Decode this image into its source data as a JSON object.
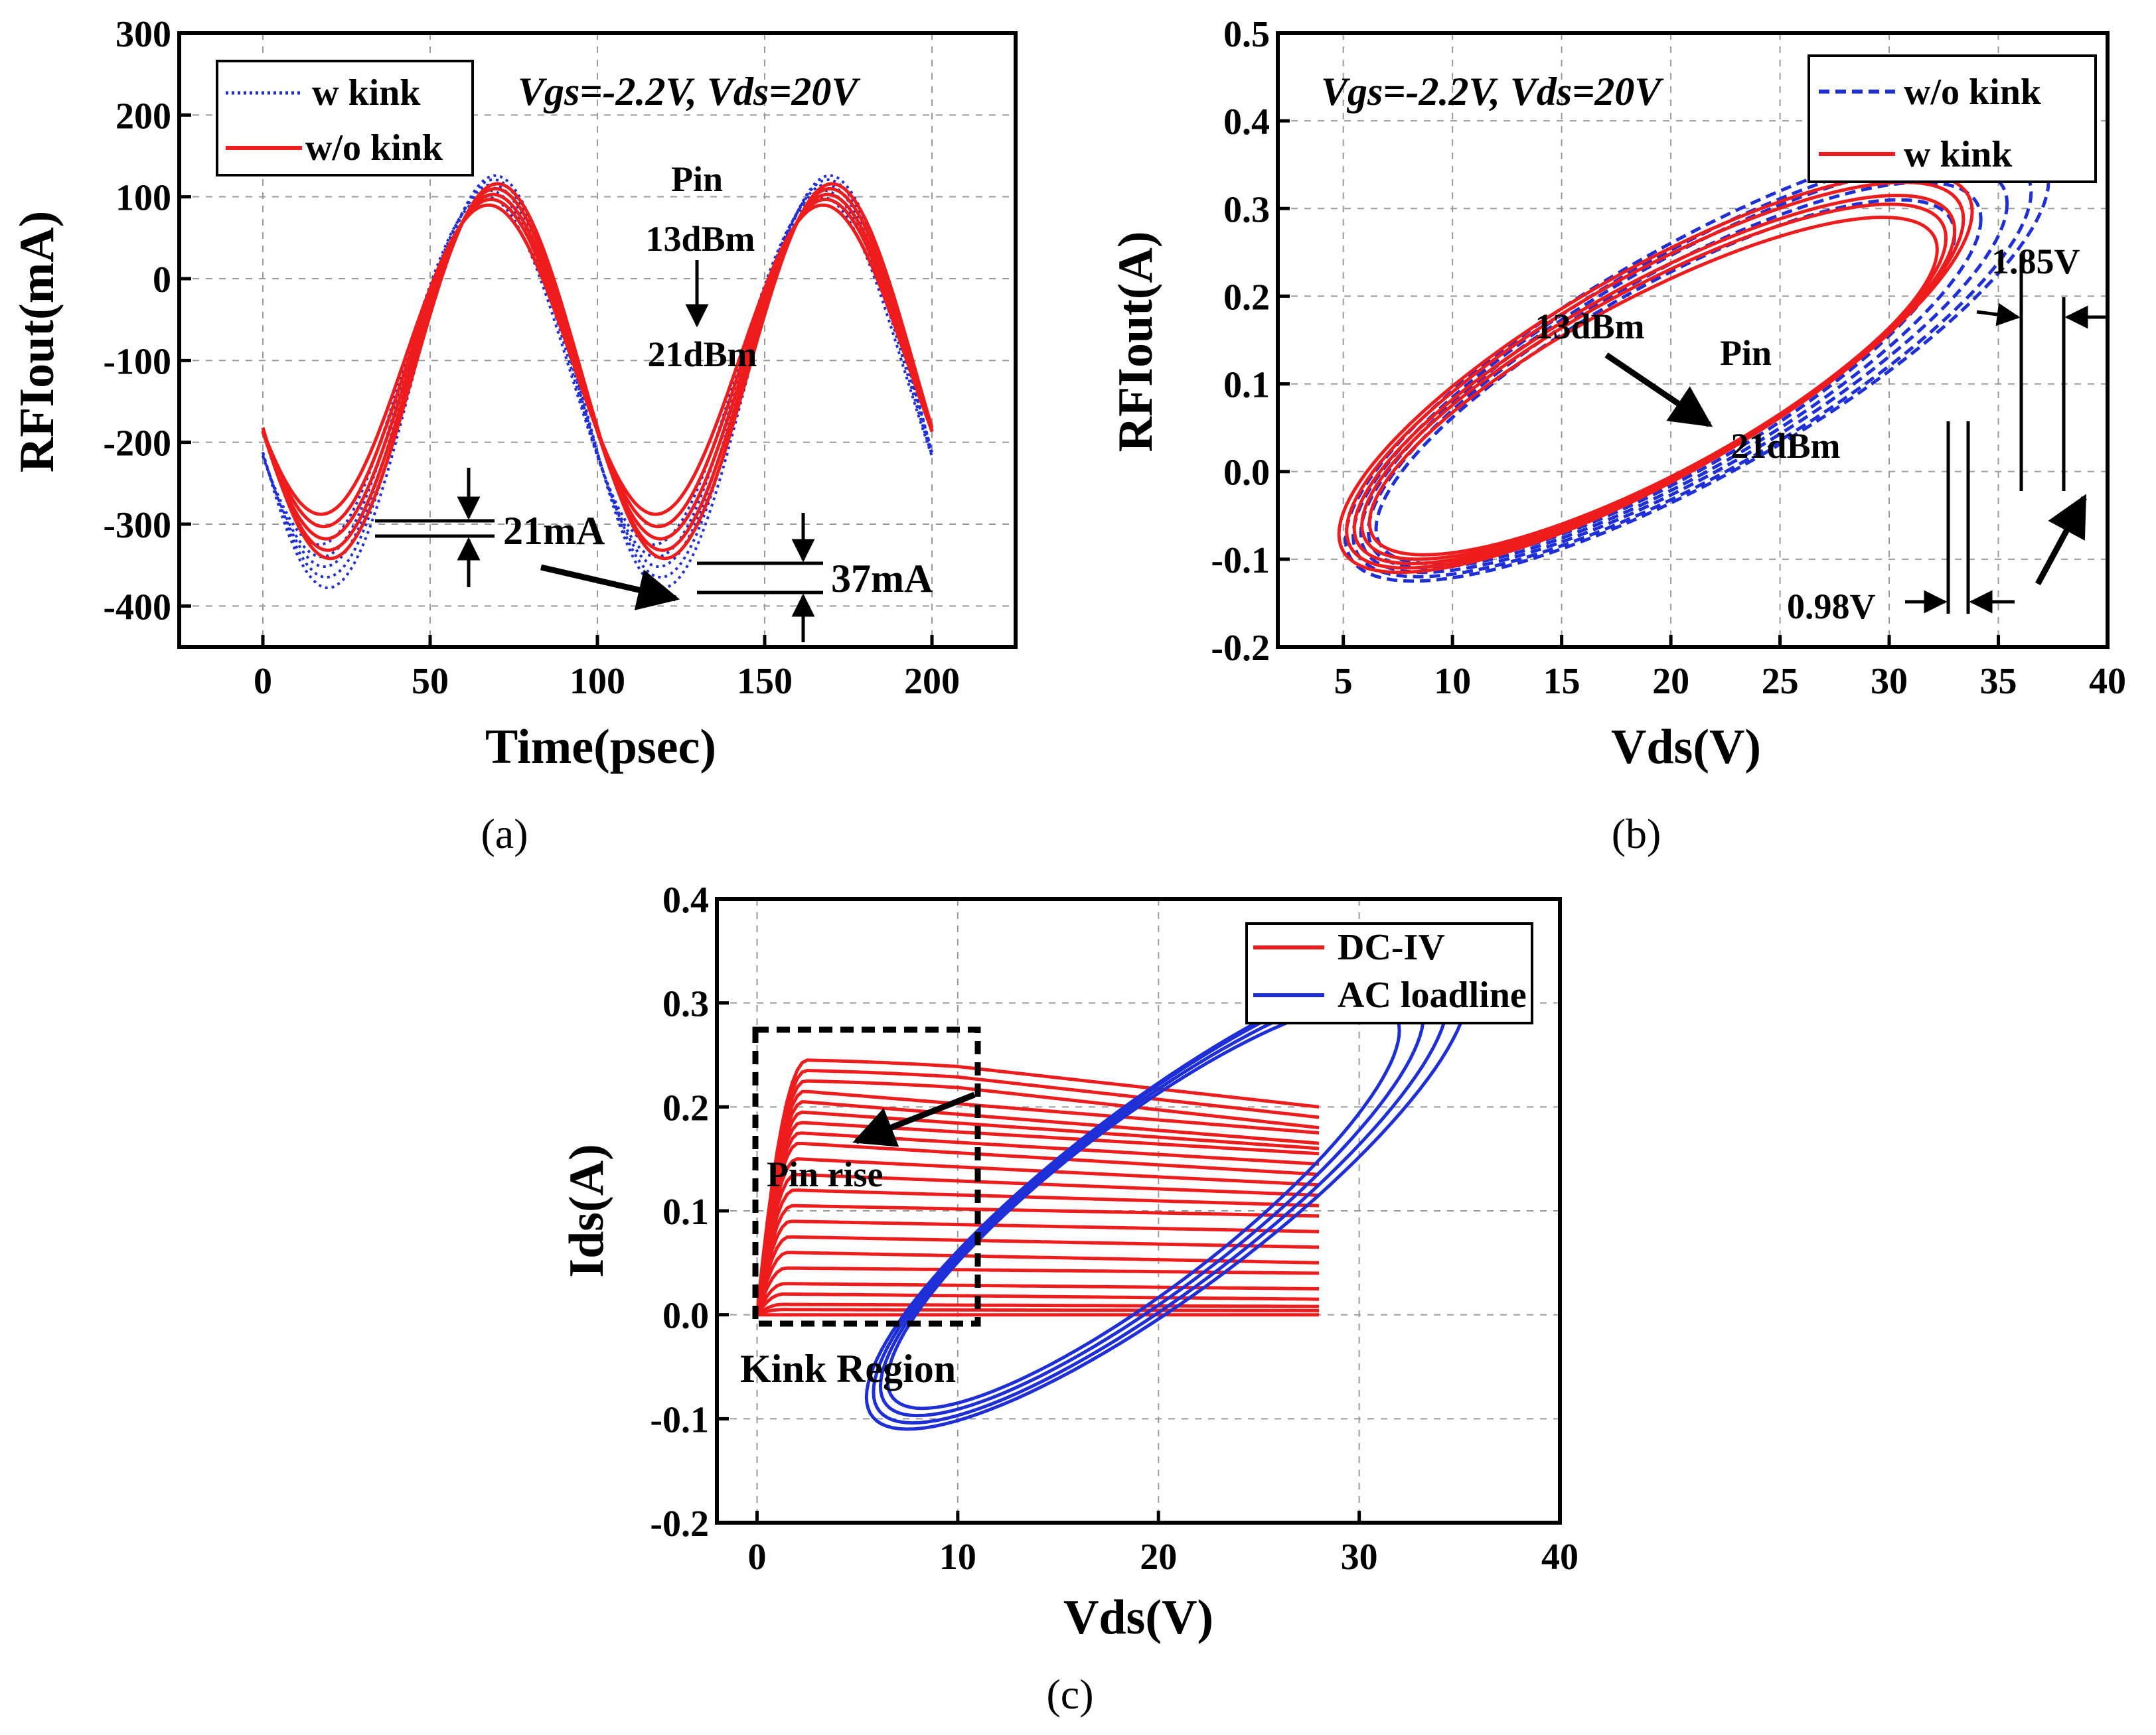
{
  "chart_data": [
    {
      "type": "line",
      "panel_label": "(a)",
      "xlabel": "Time(psec)",
      "ylabel": "RFIout(mA)",
      "xlim": [
        -25,
        225
      ],
      "ylim": [
        -450,
        300
      ],
      "xticks": [
        "0",
        "50",
        "100",
        "150",
        "200"
      ],
      "yticks": [
        "300",
        "200",
        "100",
        "0",
        "-100",
        "-200",
        "-300",
        "-400"
      ],
      "grid": true,
      "legend_position": "top-left",
      "legend": [
        {
          "name": "w kink",
          "color": "#1f2fd8",
          "style": "dotted"
        },
        {
          "name": "w/o kink",
          "color": "#ee1c1c",
          "style": "solid"
        }
      ],
      "condition": "Vgs=-2.2V, Vds=20V",
      "series": [
        {
          "name": "w kink",
          "color": "#1f2fd8",
          "style": "dotted",
          "period_ps": 100,
          "time_range": [
            0,
            200
          ],
          "peak_max_mA": [
            100,
            108,
            115,
            121,
            126
          ],
          "trough_min_mA": [
            -325,
            -340,
            -352,
            -365,
            -378
          ]
        },
        {
          "name": "w/o kink",
          "color": "#ee1c1c",
          "style": "solid",
          "period_ps": 100,
          "time_range": [
            0,
            200
          ],
          "peak_max_mA": [
            90,
            97,
            103,
            110,
            116
          ],
          "trough_min_mA": [
            -288,
            -303,
            -318,
            -332,
            -342
          ]
        }
      ],
      "annotations": {
        "pin": "Pin",
        "pin_low": "13dBm",
        "pin_high": "21dBm",
        "delta1": "21mA",
        "delta2": "37mA"
      }
    },
    {
      "type": "line",
      "panel_label": "(b)",
      "xlabel": "Vds(V)",
      "ylabel": "RFIout(A)",
      "xlim": [
        2,
        40
      ],
      "ylim": [
        -0.2,
        0.5
      ],
      "xticks": [
        "5",
        "10",
        "15",
        "20",
        "25",
        "30",
        "35",
        "40"
      ],
      "yticks": [
        "0.5",
        "0.4",
        "0.3",
        "0.2",
        "0.1",
        "0.0",
        "-0.1",
        "-0.2"
      ],
      "grid": true,
      "legend_position": "top-right",
      "legend": [
        {
          "name": "w/o kink",
          "color": "#1f2fd8",
          "style": "dashed"
        },
        {
          "name": "w kink",
          "color": "#ee1c1c",
          "style": "solid"
        }
      ],
      "condition": "Vgs=-2.2V, Vds=20V",
      "series": [
        {
          "name": "w/o kink",
          "color": "#1f2fd8",
          "style": "dashed",
          "loops_vds_max_V": [
            33.0,
            34.2,
            35.4,
            36.5,
            37.3
          ],
          "loops_ids_max_A": [
            0.31,
            0.33,
            0.35,
            0.365,
            0.38
          ],
          "loops_ids_min_A": [
            -0.105,
            -0.11,
            -0.115,
            -0.12,
            -0.125
          ]
        },
        {
          "name": "w kink",
          "color": "#ee1c1c",
          "style": "solid",
          "loops_vds_max_V": [
            32.2,
            32.6,
            33.0,
            33.4,
            33.8
          ],
          "loops_ids_max_A": [
            0.29,
            0.305,
            0.315,
            0.33,
            0.34
          ],
          "loops_ids_min_A": [
            -0.095,
            -0.1,
            -0.105,
            -0.11,
            -0.115
          ]
        }
      ],
      "annotations": {
        "pin": "Pin",
        "pin_low": "13dBm",
        "pin_high": "21dBm",
        "delta_blue": "1.85V",
        "delta_red": "0.98V"
      }
    },
    {
      "type": "line",
      "panel_label": "(c)",
      "xlabel": "Vds(V)",
      "ylabel": "Ids(A)",
      "xlim": [
        -2,
        40
      ],
      "ylim": [
        -0.2,
        0.4
      ],
      "xticks": [
        "0",
        "10",
        "20",
        "30",
        "40"
      ],
      "yticks": [
        "0.4",
        "0.3",
        "0.2",
        "0.1",
        "0.0",
        "-0.1",
        "-0.2"
      ],
      "grid": true,
      "legend_position": "top-right",
      "legend": [
        {
          "name": "DC-IV",
          "color": "#ee1c1c",
          "style": "solid"
        },
        {
          "name": "AC loadline",
          "color": "#1f2fd8",
          "style": "solid"
        }
      ],
      "series": [
        {
          "name": "DC-IV",
          "color": "#ee1c1c",
          "style": "solid",
          "vds_range": [
            0,
            28
          ],
          "knee_ids_A": [
            0.0,
            0.005,
            0.01,
            0.02,
            0.03,
            0.045,
            0.06,
            0.075,
            0.09,
            0.105,
            0.12,
            0.135,
            0.15,
            0.165,
            0.175,
            0.185,
            0.195,
            0.205,
            0.215,
            0.225,
            0.235,
            0.245
          ],
          "end_ids_A_at_28V": [
            0.0,
            0.004,
            0.008,
            0.015,
            0.025,
            0.04,
            0.05,
            0.065,
            0.08,
            0.095,
            0.105,
            0.115,
            0.125,
            0.135,
            0.145,
            0.155,
            0.16,
            0.165,
            0.175,
            0.18,
            0.19,
            0.2
          ]
        },
        {
          "name": "AC loadline",
          "color": "#1f2fd8",
          "style": "solid",
          "loops_vds_max_V": [
            32.0,
            33.2,
            34.4,
            35.4
          ],
          "loops_ids_max_A": [
            0.3,
            0.315,
            0.33,
            0.34
          ],
          "loops_ids_min_A": [
            -0.09,
            -0.097,
            -0.104,
            -0.11
          ]
        }
      ],
      "annotations": {
        "region": "Kink Region",
        "pin_rise": "Pin rise"
      }
    }
  ]
}
